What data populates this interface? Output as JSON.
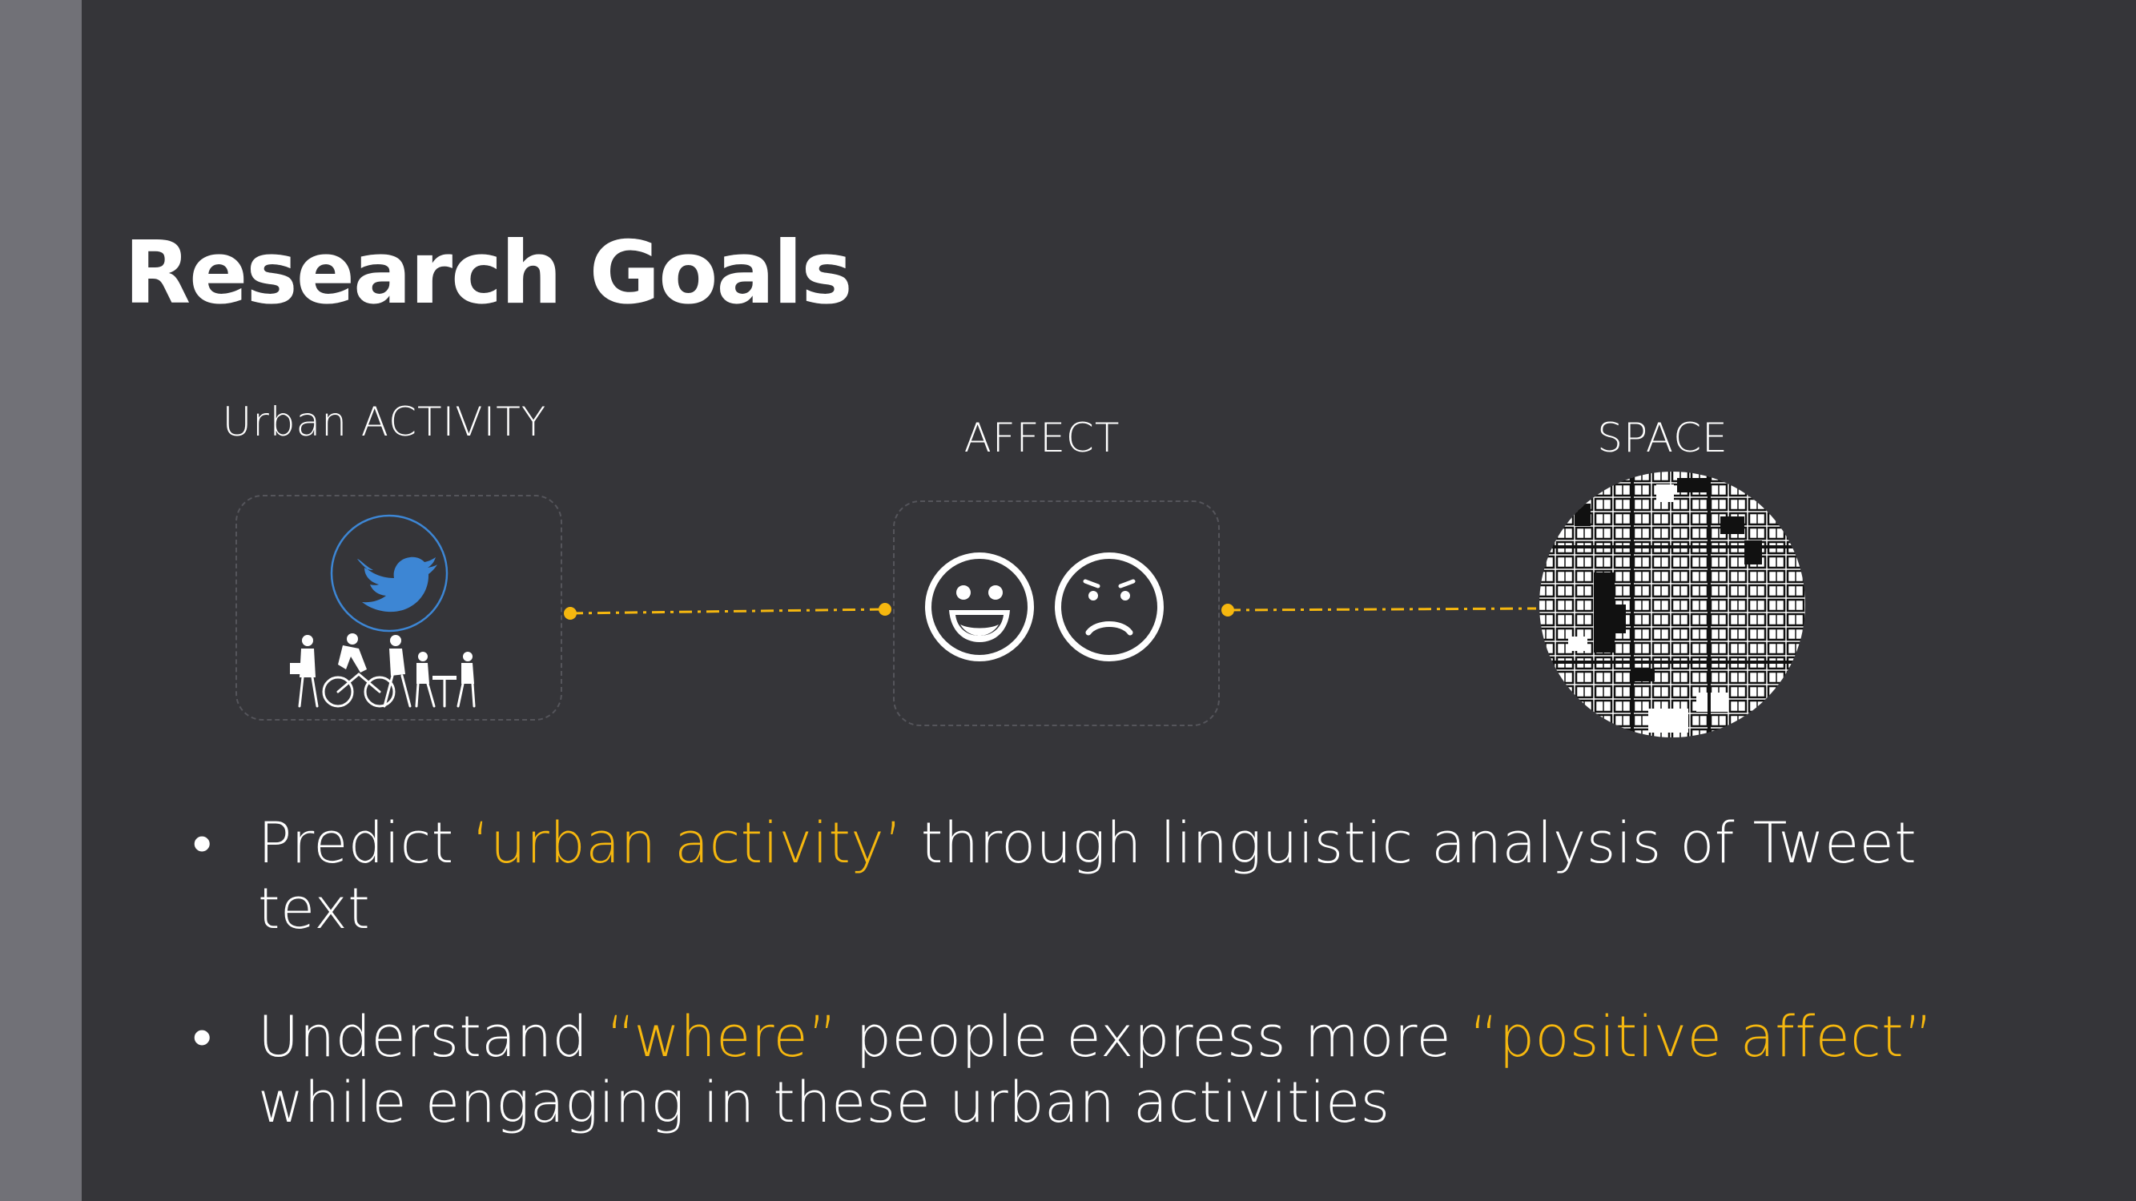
{
  "title": "Research Goals",
  "colors": {
    "background": "#353539",
    "sidebar": "#717177",
    "accent": "#f5b70f",
    "text": "#ffffff",
    "twitter": "#3d86d4"
  },
  "nodes": {
    "activity": {
      "label": "Urban ACTIVITY",
      "icons": [
        "twitter-bird-icon",
        "people-activities-icon"
      ]
    },
    "affect": {
      "label": "AFFECT",
      "icons": [
        "happy-face-icon",
        "sad-face-icon"
      ]
    },
    "space": {
      "label": "SPACE",
      "icons": [
        "city-map-icon"
      ]
    }
  },
  "bullets": [
    {
      "marker": "•",
      "parts": [
        {
          "text": "Predict ",
          "highlight": false
        },
        {
          "text": "‘urban activity’",
          "highlight": true
        },
        {
          "text": " through linguistic analysis of Tweet text",
          "highlight": false
        }
      ]
    },
    {
      "marker": "•",
      "parts": [
        {
          "text": "Understand ",
          "highlight": false
        },
        {
          "text": "“where”",
          "highlight": true
        },
        {
          "text": " people express more ",
          "highlight": false
        },
        {
          "text": "“positive affect”",
          "highlight": true
        },
        {
          "text": " while engaging in these urban activities",
          "highlight": false
        }
      ]
    }
  ]
}
